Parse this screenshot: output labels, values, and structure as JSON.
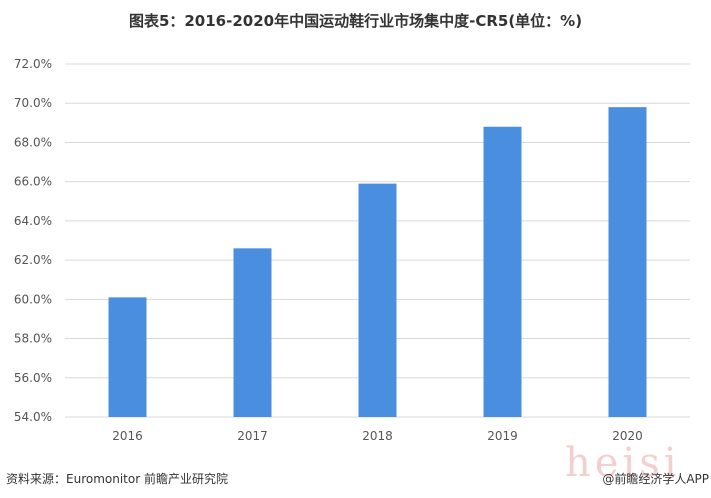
{
  "title": "图表5：2016-2020年中国运动鞋行业市场集中度-CR5(单位：%)",
  "source": "资料来源：Euromonitor 前瞻产业研究院",
  "credit": "@前瞻经济学人APP",
  "watermark": "heisi",
  "chart_data": {
    "type": "bar",
    "title": "图表5：2016-2020年中国运动鞋行业市场集中度-CR5(单位：%)",
    "categories": [
      "2016",
      "2017",
      "2018",
      "2019",
      "2020"
    ],
    "values": [
      60.1,
      62.6,
      65.9,
      68.8,
      69.8
    ],
    "ylim": [
      54,
      72
    ],
    "yticks": [
      "54.0%",
      "56.0%",
      "58.0%",
      "60.0%",
      "62.0%",
      "64.0%",
      "66.0%",
      "68.0%",
      "70.0%",
      "72.0%"
    ],
    "grid": true,
    "color": "#4a8ee0"
  }
}
